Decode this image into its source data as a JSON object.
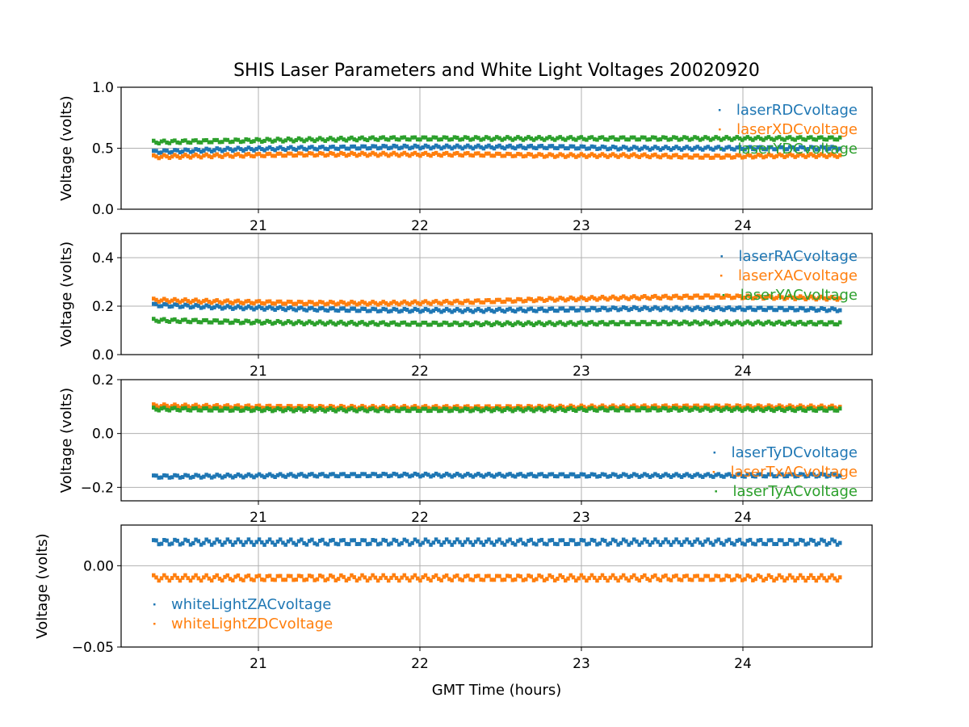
{
  "figure": {
    "title": "SHIS Laser Parameters and White Light Voltages 20020920",
    "xlabel": "GMT Time (hours)"
  },
  "chart_data": [
    {
      "type": "scatter",
      "ylabel": "Voltage (volts)",
      "xlim": [
        20.15,
        24.8
      ],
      "ylim": [
        0.0,
        1.0
      ],
      "xticks": [
        21,
        22,
        23,
        24
      ],
      "xtick_labels": [
        "21",
        "22",
        "23",
        "24"
      ],
      "yticks": [
        0.0,
        0.5,
        1.0
      ],
      "ytick_labels": [
        "0.0",
        "0.5",
        "1.0"
      ],
      "grid": true,
      "legend": "upper-right",
      "series": [
        {
          "name": "laserRDCvoltage",
          "color": "#1f77b4",
          "x": [
            20.35,
            20.8,
            21.3,
            21.8,
            22.3,
            22.8,
            23.3,
            23.8,
            24.3,
            24.6
          ],
          "y": [
            0.47,
            0.49,
            0.5,
            0.51,
            0.51,
            0.51,
            0.5,
            0.5,
            0.5,
            0.5
          ]
        },
        {
          "name": "laserXDCvoltage",
          "color": "#ff7f0e",
          "x": [
            20.35,
            20.8,
            21.3,
            21.8,
            22.3,
            22.8,
            23.3,
            23.8,
            24.3,
            24.6
          ],
          "y": [
            0.43,
            0.44,
            0.45,
            0.45,
            0.45,
            0.44,
            0.44,
            0.43,
            0.44,
            0.44
          ]
        },
        {
          "name": "laserYDCvoltage",
          "color": "#2ca02c",
          "x": [
            20.35,
            20.8,
            21.3,
            21.8,
            22.3,
            22.8,
            23.3,
            23.8,
            24.3,
            24.6
          ],
          "y": [
            0.55,
            0.56,
            0.57,
            0.58,
            0.58,
            0.58,
            0.58,
            0.58,
            0.58,
            0.58
          ]
        }
      ]
    },
    {
      "type": "scatter",
      "ylabel": "Voltage (volts)",
      "xlim": [
        20.15,
        24.8
      ],
      "ylim": [
        0.0,
        0.5
      ],
      "xticks": [
        21,
        22,
        23,
        24
      ],
      "xtick_labels": [
        "21",
        "22",
        "23",
        "24"
      ],
      "yticks": [
        0.0,
        0.2,
        0.4
      ],
      "ytick_labels": [
        "0.0",
        "0.2",
        "0.4"
      ],
      "grid": true,
      "legend": "upper-right",
      "series": [
        {
          "name": "laserRACvoltage",
          "color": "#1f77b4",
          "x": [
            20.35,
            20.8,
            21.3,
            21.8,
            22.3,
            22.8,
            23.3,
            23.8,
            24.3,
            24.6
          ],
          "y": [
            0.205,
            0.195,
            0.188,
            0.183,
            0.182,
            0.185,
            0.19,
            0.19,
            0.188,
            0.185
          ]
        },
        {
          "name": "laserXACvoltage",
          "color": "#ff7f0e",
          "x": [
            20.35,
            20.8,
            21.3,
            21.8,
            22.3,
            22.8,
            23.3,
            23.8,
            24.3,
            24.6
          ],
          "y": [
            0.225,
            0.218,
            0.213,
            0.212,
            0.218,
            0.228,
            0.235,
            0.24,
            0.235,
            0.232
          ]
        },
        {
          "name": "laserYACvoltage",
          "color": "#2ca02c",
          "x": [
            20.35,
            20.8,
            21.3,
            21.8,
            22.3,
            22.8,
            23.3,
            23.8,
            24.3,
            24.6
          ],
          "y": [
            0.142,
            0.136,
            0.131,
            0.128,
            0.127,
            0.128,
            0.13,
            0.131,
            0.13,
            0.129
          ]
        }
      ]
    },
    {
      "type": "scatter",
      "ylabel": "Voltage (volts)",
      "xlim": [
        20.15,
        24.8
      ],
      "ylim": [
        -0.25,
        0.2
      ],
      "xticks": [
        21,
        22,
        23,
        24
      ],
      "xtick_labels": [
        "21",
        "22",
        "23",
        "24"
      ],
      "yticks": [
        -0.2,
        0.0,
        0.2
      ],
      "ytick_labels": [
        "−0.2",
        "0.0",
        "0.2"
      ],
      "grid": true,
      "legend": "lower-right",
      "series": [
        {
          "name": "laserTyDCvoltage",
          "color": "#1f77b4",
          "x": [
            20.35,
            20.8,
            21.3,
            21.8,
            22.3,
            22.8,
            23.3,
            23.8,
            24.3,
            24.6
          ],
          "y": [
            -0.16,
            -0.158,
            -0.155,
            -0.154,
            -0.155,
            -0.155,
            -0.156,
            -0.156,
            -0.155,
            -0.155
          ]
        },
        {
          "name": "laserTxACvoltage",
          "color": "#ff7f0e",
          "x": [
            20.35,
            20.8,
            21.3,
            21.8,
            22.3,
            22.8,
            23.3,
            23.8,
            24.3,
            24.6
          ],
          "y": [
            0.103,
            0.1,
            0.098,
            0.097,
            0.097,
            0.098,
            0.099,
            0.1,
            0.099,
            0.098
          ]
        },
        {
          "name": "laserTyACvoltage",
          "color": "#2ca02c",
          "x": [
            20.35,
            20.8,
            21.3,
            21.8,
            22.3,
            22.8,
            23.3,
            23.8,
            24.3,
            24.6
          ],
          "y": [
            0.091,
            0.089,
            0.088,
            0.088,
            0.088,
            0.089,
            0.09,
            0.09,
            0.089,
            0.089
          ]
        }
      ]
    },
    {
      "type": "scatter",
      "ylabel": "Voltage (volts)",
      "xlabel": "GMT Time (hours)",
      "xlim": [
        20.15,
        24.8
      ],
      "ylim": [
        -0.05,
        0.025
      ],
      "xticks": [
        21,
        22,
        23,
        24
      ],
      "xtick_labels": [
        "21",
        "22",
        "23",
        "24"
      ],
      "yticks": [
        -0.05,
        0.0
      ],
      "ytick_labels": [
        "−0.05",
        "0.00"
      ],
      "grid": true,
      "legend": "lower-left",
      "series": [
        {
          "name": "whiteLightZACvoltage",
          "color": "#1f77b4",
          "x": [
            20.35,
            20.8,
            21.3,
            21.8,
            22.3,
            22.8,
            23.3,
            23.8,
            24.3,
            24.6
          ],
          "y": [
            0.0145,
            0.0145,
            0.0145,
            0.0145,
            0.0145,
            0.0145,
            0.0145,
            0.0145,
            0.0145,
            0.0145
          ]
        },
        {
          "name": "whiteLightZDCvoltage",
          "color": "#ff7f0e",
          "x": [
            20.35,
            20.8,
            21.3,
            21.8,
            22.3,
            22.8,
            23.3,
            23.8,
            24.3,
            24.6
          ],
          "y": [
            -0.0075,
            -0.0075,
            -0.0075,
            -0.0075,
            -0.0075,
            -0.0075,
            -0.0075,
            -0.0075,
            -0.0075,
            -0.0075
          ]
        }
      ]
    }
  ]
}
